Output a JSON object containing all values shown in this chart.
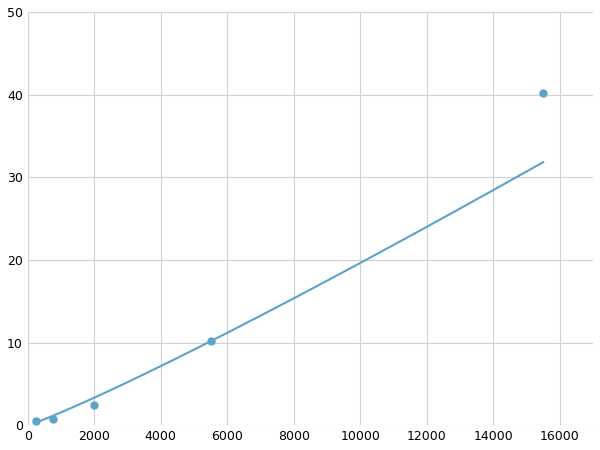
{
  "x": [
    250,
    750,
    2000,
    5500,
    15500
  ],
  "y": [
    0.5,
    0.8,
    2.5,
    10.2,
    40.2
  ],
  "line_color": "#5ba3c9",
  "marker_color": "#5ba3c9",
  "marker_size": 5,
  "line_width": 1.5,
  "xlim": [
    0,
    17000
  ],
  "ylim": [
    0,
    50
  ],
  "xticks": [
    0,
    2000,
    4000,
    6000,
    8000,
    10000,
    12000,
    14000,
    16000
  ],
  "yticks": [
    0,
    10,
    20,
    30,
    40,
    50
  ],
  "grid_color": "#d0d0d0",
  "background_color": "#ffffff",
  "tick_fontsize": 9,
  "fig_width": 6.0,
  "fig_height": 4.5,
  "dpi": 100
}
